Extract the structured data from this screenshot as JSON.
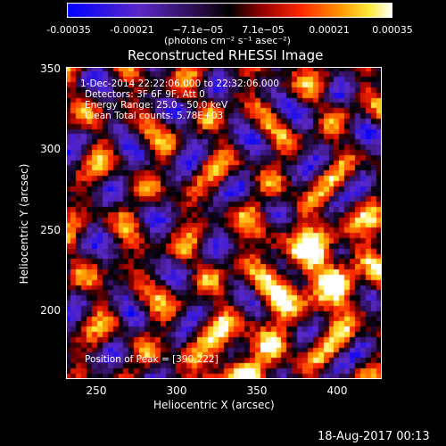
{
  "colorbar": {
    "tick_labels": [
      "-0.00035",
      "-0.00021",
      "−7.1e−05",
      "7.1e−05",
      "0.00021",
      "0.00035"
    ],
    "units": "(photons cm⁻² s⁻¹ asec⁻²)",
    "range": [
      -0.00035,
      0.00035
    ]
  },
  "chart_data": {
    "type": "heatmap",
    "title": "Reconstructed RHESSI Image",
    "xlabel": "Heliocentric X (arcsec)",
    "ylabel": "Heliocentric Y (arcsec)",
    "xlim": [
      233,
      429
    ],
    "ylim": [
      155,
      352
    ],
    "x_ticks": [
      "250",
      "300",
      "350",
      "400"
    ],
    "y_ticks": [
      "350",
      "300",
      "250",
      "200"
    ],
    "peak_position": [
      390,
      222
    ],
    "annotations": [
      " 1-Dec-2014 22:22:06.000 to 22:32:06.000",
      "Detectors: 3F 6F 9F, Att 0",
      "Energy Range: 25.0 - 50.0 keV",
      "Clean     Total counts: 5.78E+03",
      "Position of Peak = [390,222]"
    ]
  },
  "footer": {
    "timestamp": "18-Aug-2017 00:13"
  }
}
